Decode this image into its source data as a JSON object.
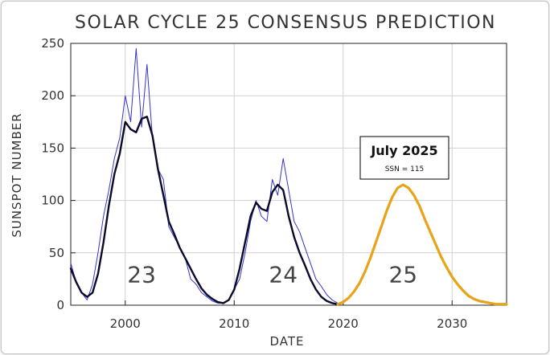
{
  "chart_data": {
    "type": "line",
    "title": "SOLAR CYCLE 25 CONSENSUS PREDICTION",
    "xlabel": "DATE",
    "ylabel": "SUNSPOT NUMBER",
    "xlim": [
      1995,
      2035
    ],
    "ylim": [
      0,
      250
    ],
    "x_ticks": [
      "2000",
      "2010",
      "2020",
      "2030"
    ],
    "y_ticks": [
      "0",
      "50",
      "100",
      "150",
      "200",
      "250"
    ],
    "grid": true,
    "cycle_labels": [
      {
        "text": "23",
        "x": 2001.5,
        "y": 22
      },
      {
        "text": "24",
        "x": 2014.5,
        "y": 22
      },
      {
        "text": "25",
        "x": 2025.5,
        "y": 22
      }
    ],
    "annotation": {
      "title": "July 2025",
      "subtitle": "SSN = 115"
    },
    "series": [
      {
        "style": "monthly",
        "color": "#3333cc",
        "x": [
          1995.0,
          1995.5,
          1996.0,
          1996.5,
          1997.0,
          1997.5,
          1998.0,
          1998.5,
          1999.0,
          1999.5,
          2000.0,
          2000.5,
          2001.0,
          2001.5,
          2002.0,
          2002.5,
          2003.0,
          2003.5,
          2004.0,
          2004.5,
          2005.0,
          2005.5,
          2006.0,
          2006.5,
          2007.0,
          2007.5,
          2008.0,
          2008.5,
          2009.0,
          2009.5,
          2010.0,
          2010.5,
          2011.0,
          2011.5,
          2012.0,
          2012.5,
          2013.0,
          2013.5,
          2014.0,
          2014.5,
          2015.0,
          2015.5,
          2016.0,
          2016.5,
          2017.0,
          2017.5,
          2018.0,
          2018.5,
          2019.0,
          2019.5
        ],
        "y": [
          40,
          22,
          12,
          5,
          20,
          50,
          85,
          110,
          140,
          160,
          200,
          175,
          245,
          170,
          230,
          160,
          130,
          120,
          75,
          65,
          55,
          45,
          25,
          20,
          12,
          8,
          4,
          2,
          2,
          5,
          15,
          25,
          50,
          80,
          100,
          85,
          80,
          120,
          105,
          140,
          110,
          80,
          70,
          55,
          40,
          25,
          18,
          10,
          5,
          2
        ]
      },
      {
        "style": "smoothed",
        "color": "#0a0a2a",
        "x": [
          1995.0,
          1995.5,
          1996.0,
          1996.5,
          1997.0,
          1997.5,
          1998.0,
          1998.5,
          1999.0,
          1999.5,
          2000.0,
          2000.5,
          2001.0,
          2001.5,
          2002.0,
          2002.5,
          2003.0,
          2003.5,
          2004.0,
          2004.5,
          2005.0,
          2005.5,
          2006.0,
          2006.5,
          2007.0,
          2007.5,
          2008.0,
          2008.5,
          2009.0,
          2009.5,
          2010.0,
          2010.5,
          2011.0,
          2011.5,
          2012.0,
          2012.5,
          2013.0,
          2013.5,
          2014.0,
          2014.5,
          2015.0,
          2015.5,
          2016.0,
          2016.5,
          2017.0,
          2017.5,
          2018.0,
          2018.5,
          2019.0,
          2019.5
        ],
        "y": [
          35,
          22,
          12,
          8,
          12,
          30,
          60,
          95,
          125,
          145,
          175,
          168,
          165,
          178,
          180,
          162,
          130,
          105,
          80,
          68,
          55,
          45,
          35,
          25,
          16,
          10,
          6,
          3,
          2,
          5,
          15,
          35,
          60,
          85,
          98,
          92,
          90,
          108,
          115,
          110,
          85,
          65,
          50,
          38,
          25,
          15,
          8,
          4,
          2,
          1
        ]
      },
      {
        "style": "prediction",
        "color": "#e8a317",
        "x": [
          2019.5,
          2020.0,
          2020.5,
          2021.0,
          2021.5,
          2022.0,
          2022.5,
          2023.0,
          2023.5,
          2024.0,
          2024.5,
          2025.0,
          2025.5,
          2026.0,
          2026.5,
          2027.0,
          2027.5,
          2028.0,
          2028.5,
          2029.0,
          2029.5,
          2030.0,
          2030.5,
          2031.0,
          2031.5,
          2032.0,
          2032.5,
          2033.0,
          2033.5,
          2034.0,
          2034.5,
          2035.0
        ],
        "y": [
          1,
          3,
          7,
          13,
          21,
          32,
          45,
          60,
          75,
          90,
          103,
          112,
          115,
          112,
          105,
          95,
          82,
          70,
          58,
          46,
          36,
          27,
          20,
          14,
          9,
          6,
          4,
          3,
          2,
          1,
          1,
          1
        ]
      }
    ]
  }
}
